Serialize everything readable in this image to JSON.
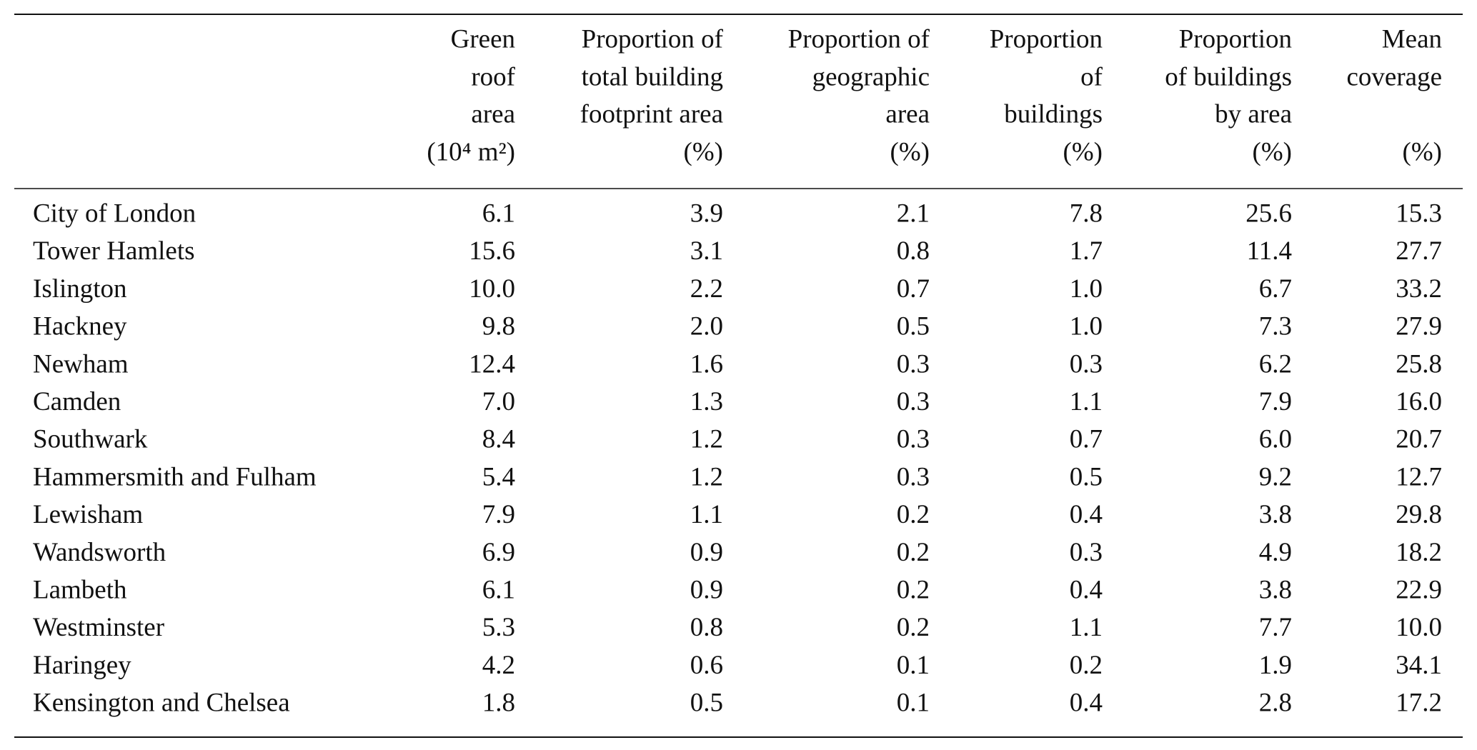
{
  "table": {
    "stub_header": null,
    "columns": [
      {
        "lines": [
          "Green",
          "roof",
          "area"
        ],
        "unit": "(10⁴ m²)"
      },
      {
        "lines": [
          "Proportion of",
          "total building",
          "footprint area"
        ],
        "unit": "(%)"
      },
      {
        "lines": [
          "Proportion of",
          "geographic",
          "area"
        ],
        "unit": "(%)"
      },
      {
        "lines": [
          "Proportion",
          "of",
          "buildings"
        ],
        "unit": "(%)"
      },
      {
        "lines": [
          "Proportion",
          "of buildings",
          "by area"
        ],
        "unit": "(%)"
      },
      {
        "lines": [
          "Mean",
          "coverage"
        ],
        "unit": "(%)"
      }
    ],
    "rows": [
      [
        "City of London",
        "6.1",
        "3.9",
        "2.1",
        "7.8",
        "25.6",
        "15.3"
      ],
      [
        "Tower Hamlets",
        "15.6",
        "3.1",
        "0.8",
        "1.7",
        "11.4",
        "27.7"
      ],
      [
        "Islington",
        "10.0",
        "2.2",
        "0.7",
        "1.0",
        "6.7",
        "33.2"
      ],
      [
        "Hackney",
        "9.8",
        "2.0",
        "0.5",
        "1.0",
        "7.3",
        "27.9"
      ],
      [
        "Newham",
        "12.4",
        "1.6",
        "0.3",
        "0.3",
        "6.2",
        "25.8"
      ],
      [
        "Camden",
        "7.0",
        "1.3",
        "0.3",
        "1.1",
        "7.9",
        "16.0"
      ],
      [
        "Southwark",
        "8.4",
        "1.2",
        "0.3",
        "0.7",
        "6.0",
        "20.7"
      ],
      [
        "Hammersmith and Fulham",
        "5.4",
        "1.2",
        "0.3",
        "0.5",
        "9.2",
        "12.7"
      ],
      [
        "Lewisham",
        "7.9",
        "1.1",
        "0.2",
        "0.4",
        "3.8",
        "29.8"
      ],
      [
        "Wandsworth",
        "6.9",
        "0.9",
        "0.2",
        "0.3",
        "4.9",
        "18.2"
      ],
      [
        "Lambeth",
        "6.1",
        "0.9",
        "0.2",
        "0.4",
        "3.8",
        "22.9"
      ],
      [
        "Westminster",
        "5.3",
        "0.8",
        "0.2",
        "1.1",
        "7.7",
        "10.0"
      ],
      [
        "Haringey",
        "4.2",
        "0.6",
        "0.1",
        "0.2",
        "1.9",
        "34.1"
      ],
      [
        "Kensington and Chelsea",
        "1.8",
        "0.5",
        "0.1",
        "0.4",
        "2.8",
        "17.2"
      ]
    ]
  }
}
